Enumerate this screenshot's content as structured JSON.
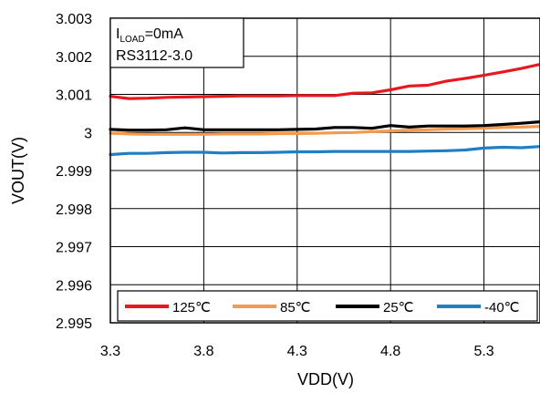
{
  "chart_data": {
    "type": "line",
    "xlabel": "VDD(V)",
    "ylabel": "VOUT(V)",
    "xlim": [
      3.3,
      5.6
    ],
    "ylim": [
      2.995,
      3.003
    ],
    "x_ticks": [
      "3.3",
      "3.8",
      "4.3",
      "4.8",
      "5.3"
    ],
    "y_ticks": [
      "3.003",
      "3.002",
      "3.001",
      "3",
      "2.999",
      "2.998",
      "2.997",
      "2.996",
      "2.995"
    ],
    "grid": true,
    "legend_position": "bottom",
    "annotation": {
      "line1_prefix": "I",
      "line1_subscript": "LOAD",
      "line1_suffix": "=0mA",
      "line2": "RS3112-3.0"
    },
    "series": [
      {
        "name": "125℃",
        "color": "#e8191e",
        "x": [
          3.3,
          3.4,
          3.5,
          3.6,
          3.7,
          3.8,
          3.9,
          4.0,
          4.1,
          4.2,
          4.3,
          4.4,
          4.5,
          4.6,
          4.7,
          4.8,
          4.9,
          5.0,
          5.1,
          5.2,
          5.3,
          5.4,
          5.5,
          5.6
        ],
        "values": [
          3.00095,
          3.00089,
          3.0009,
          3.00092,
          3.00093,
          3.00094,
          3.00095,
          3.00096,
          3.00096,
          3.00096,
          3.00097,
          3.00097,
          3.00097,
          3.00103,
          3.00104,
          3.00112,
          3.00122,
          3.00124,
          3.00135,
          3.00142,
          3.0015,
          3.00159,
          3.00168,
          3.00179
        ]
      },
      {
        "name": "85℃",
        "color": "#f39a4e",
        "x": [
          3.3,
          3.4,
          3.5,
          3.6,
          3.7,
          3.8,
          3.9,
          4.0,
          4.1,
          4.2,
          4.3,
          4.4,
          4.5,
          4.6,
          4.7,
          4.8,
          4.9,
          5.0,
          5.1,
          5.2,
          5.3,
          5.4,
          5.5,
          5.6
        ],
        "values": [
          2.99998,
          2.99996,
          2.99995,
          2.99995,
          2.99995,
          2.99995,
          2.99996,
          2.99996,
          2.99996,
          2.99997,
          2.99997,
          2.99998,
          2.99999,
          3.0,
          3.00002,
          3.00004,
          3.00006,
          3.00007,
          3.00009,
          3.0001,
          3.00011,
          3.00013,
          3.00014,
          3.00016
        ]
      },
      {
        "name": "25℃",
        "color": "#000000",
        "x": [
          3.3,
          3.4,
          3.5,
          3.6,
          3.7,
          3.8,
          3.9,
          4.0,
          4.1,
          4.2,
          4.3,
          4.4,
          4.5,
          4.6,
          4.7,
          4.8,
          4.9,
          5.0,
          5.1,
          5.2,
          5.3,
          5.4,
          5.5,
          5.6
        ],
        "values": [
          3.00008,
          3.00006,
          3.00006,
          3.00007,
          3.00012,
          3.00007,
          3.00007,
          3.00007,
          3.00007,
          3.00007,
          3.00008,
          3.00009,
          3.00013,
          3.00013,
          3.00011,
          3.00018,
          3.00014,
          3.00017,
          3.00017,
          3.00017,
          3.00018,
          3.00021,
          3.00024,
          3.00028
        ]
      },
      {
        "name": "-40℃",
        "color": "#1f7fc4",
        "x": [
          3.3,
          3.4,
          3.5,
          3.6,
          3.7,
          3.8,
          3.9,
          4.0,
          4.1,
          4.2,
          4.3,
          4.4,
          4.5,
          4.6,
          4.7,
          4.8,
          4.9,
          5.0,
          5.1,
          5.2,
          5.3,
          5.4,
          5.5,
          5.6
        ],
        "values": [
          2.99942,
          2.99945,
          2.99945,
          2.99947,
          2.99948,
          2.99948,
          2.99946,
          2.99947,
          2.99947,
          2.99948,
          2.99949,
          2.99949,
          2.9995,
          2.9995,
          2.9995,
          2.9995,
          2.9995,
          2.99951,
          2.99952,
          2.99954,
          2.99959,
          2.99961,
          2.9996,
          2.99963
        ]
      }
    ]
  }
}
